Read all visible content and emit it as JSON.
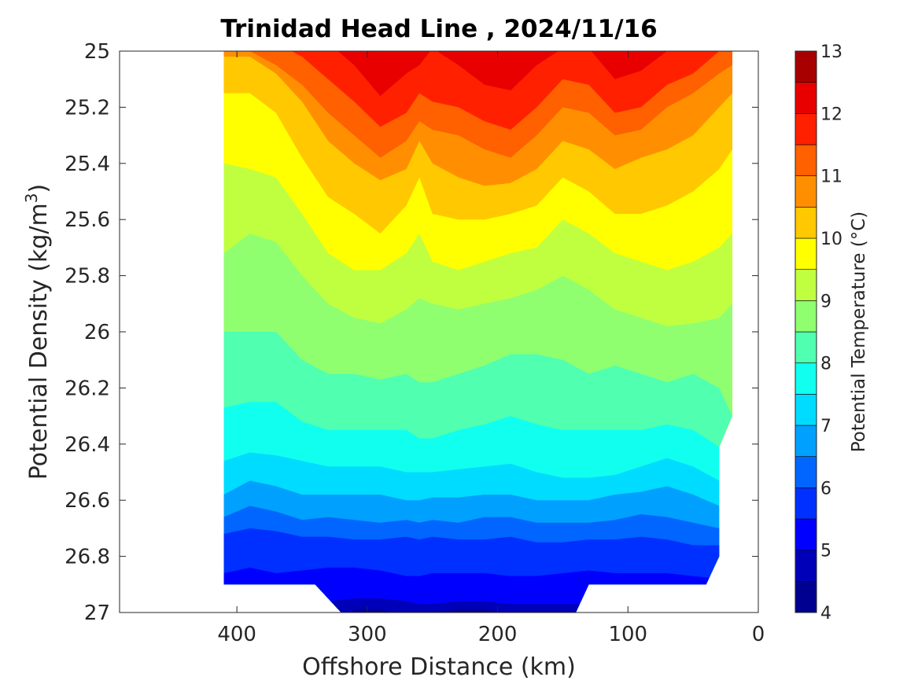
{
  "chart_data": {
    "type": "heatmap",
    "subtype": "filled-contour",
    "title": "Trinidad Head Line , 2024/11/16",
    "xlabel": "Offshore Distance (km)",
    "ylabel_main": "Potential Density (kg/m",
    "ylabel_sup": "3",
    "ylabel_close": ")",
    "colorbar_label": "Potential Temperature (°C)",
    "x_axis_reversed": true,
    "xlim": [
      0,
      490
    ],
    "ylim": [
      25,
      27
    ],
    "y_axis_inverted": true,
    "x_ticks": [
      400,
      300,
      200,
      100,
      0
    ],
    "x_tick_labels": [
      "400",
      "300",
      "200",
      "100",
      "0"
    ],
    "y_ticks": [
      25,
      25.2,
      25.4,
      25.6,
      25.8,
      26,
      26.2,
      26.4,
      26.6,
      26.8,
      27
    ],
    "y_tick_labels": [
      "25",
      "25.2",
      "25.4",
      "25.6",
      "25.8",
      "26",
      "26.2",
      "26.4",
      "26.6",
      "26.8",
      "27"
    ],
    "colorbar_ticks": [
      13,
      12,
      11,
      10,
      9,
      8,
      7,
      6,
      5,
      4
    ],
    "colorbar_tick_labels": [
      "13",
      "12",
      "11",
      "10",
      "9",
      "8",
      "7",
      "6",
      "5",
      "4"
    ],
    "color_levels": [
      {
        "from": 4.0,
        "to": 4.5,
        "color": "#000090"
      },
      {
        "from": 4.5,
        "to": 5.0,
        "color": "#0000b8"
      },
      {
        "from": 5.0,
        "to": 5.5,
        "color": "#0000ff"
      },
      {
        "from": 5.5,
        "to": 6.0,
        "color": "#0030ff"
      },
      {
        "from": 6.0,
        "to": 6.5,
        "color": "#0066ff"
      },
      {
        "from": 6.5,
        "to": 7.0,
        "color": "#00a0ff"
      },
      {
        "from": 7.0,
        "to": 7.5,
        "color": "#00dcff"
      },
      {
        "from": 7.5,
        "to": 8.0,
        "color": "#10ffef"
      },
      {
        "from": 8.0,
        "to": 8.5,
        "color": "#50ffb0"
      },
      {
        "from": 8.5,
        "to": 9.0,
        "color": "#8fff70"
      },
      {
        "from": 9.0,
        "to": 9.5,
        "color": "#c0ff40"
      },
      {
        "from": 9.5,
        "to": 10.0,
        "color": "#ffff00"
      },
      {
        "from": 10.0,
        "to": 10.5,
        "color": "#ffc800"
      },
      {
        "from": 10.5,
        "to": 11.0,
        "color": "#ff8f00"
      },
      {
        "from": 11.0,
        "to": 11.5,
        "color": "#ff6000"
      },
      {
        "from": 11.5,
        "to": 12.0,
        "color": "#ff2000"
      },
      {
        "from": 12.0,
        "to": 12.5,
        "color": "#e80000"
      },
      {
        "from": 12.5,
        "to": 13.0,
        "color": "#a80000"
      }
    ],
    "data_extent": {
      "x_range_km": [
        20,
        410
      ],
      "bottom_density_by_distance": [
        {
          "x": 410,
          "sigma": 26.9
        },
        {
          "x": 340,
          "sigma": 26.9
        },
        {
          "x": 320,
          "sigma": 27.0
        },
        {
          "x": 140,
          "sigma": 27.0
        },
        {
          "x": 130,
          "sigma": 26.9
        },
        {
          "x": 40,
          "sigma": 26.9
        },
        {
          "x": 30,
          "sigma": 26.8
        },
        {
          "x": 30,
          "sigma": 26.41
        },
        {
          "x": 20,
          "sigma": 26.3
        },
        {
          "x": 20,
          "sigma": 25.0
        }
      ]
    },
    "isotherm_x": [
      410,
      390,
      370,
      350,
      330,
      310,
      290,
      270,
      260,
      250,
      230,
      210,
      190,
      170,
      150,
      130,
      110,
      90,
      70,
      50,
      30,
      20
    ],
    "isotherms": [
      {
        "level": 12.0,
        "sigma": [
          24.95,
          24.95,
          24.95,
          24.95,
          24.97,
          25.05,
          25.16,
          25.08,
          25.05,
          24.99,
          25.05,
          25.12,
          25.14,
          25.05,
          24.99,
          24.99,
          25.1,
          25.07,
          25.0,
          24.95,
          24.95,
          24.95
        ]
      },
      {
        "level": 11.5,
        "sigma": [
          24.95,
          24.95,
          24.97,
          25.02,
          25.1,
          25.18,
          25.27,
          25.22,
          25.15,
          25.18,
          25.2,
          25.25,
          25.28,
          25.2,
          25.1,
          25.12,
          25.22,
          25.2,
          25.12,
          25.08,
          25.0,
          24.98
        ]
      },
      {
        "level": 11.0,
        "sigma": [
          25.0,
          25.0,
          25.05,
          25.12,
          25.22,
          25.3,
          25.38,
          25.32,
          25.25,
          25.28,
          25.3,
          25.35,
          25.38,
          25.3,
          25.2,
          25.22,
          25.3,
          25.28,
          25.2,
          25.15,
          25.08,
          25.05
        ]
      },
      {
        "level": 10.5,
        "sigma": [
          25.02,
          25.02,
          25.08,
          25.18,
          25.32,
          25.4,
          25.46,
          25.42,
          25.32,
          25.4,
          25.45,
          25.48,
          25.47,
          25.42,
          25.32,
          25.35,
          25.42,
          25.38,
          25.35,
          25.3,
          25.2,
          25.15
        ]
      },
      {
        "level": 10.0,
        "sigma": [
          25.15,
          25.15,
          25.22,
          25.38,
          25.52,
          25.58,
          25.65,
          25.55,
          25.45,
          25.58,
          25.6,
          25.6,
          25.58,
          25.55,
          25.45,
          25.5,
          25.58,
          25.58,
          25.55,
          25.5,
          25.42,
          25.35
        ]
      },
      {
        "level": 9.5,
        "sigma": [
          25.4,
          25.42,
          25.45,
          25.58,
          25.72,
          25.78,
          25.78,
          25.72,
          25.65,
          25.75,
          25.78,
          25.75,
          25.72,
          25.7,
          25.6,
          25.65,
          25.72,
          25.75,
          25.78,
          25.75,
          25.7,
          25.65
        ]
      },
      {
        "level": 9.0,
        "sigma": [
          25.72,
          25.65,
          25.68,
          25.8,
          25.9,
          25.95,
          25.97,
          25.92,
          25.88,
          25.9,
          25.92,
          25.9,
          25.88,
          25.85,
          25.8,
          25.85,
          25.92,
          25.95,
          25.98,
          25.97,
          25.95,
          25.9
        ]
      },
      {
        "level": 8.5,
        "sigma": [
          26.0,
          26.0,
          26.0,
          26.1,
          26.15,
          26.15,
          26.17,
          26.15,
          26.18,
          26.18,
          26.15,
          26.12,
          26.08,
          26.08,
          26.1,
          26.15,
          26.12,
          26.15,
          26.18,
          26.15,
          26.2,
          26.3
        ]
      },
      {
        "level": 8.0,
        "sigma": [
          26.27,
          26.25,
          26.25,
          26.32,
          26.35,
          26.35,
          26.35,
          26.35,
          26.38,
          26.38,
          26.35,
          26.33,
          26.3,
          26.33,
          26.35,
          26.35,
          26.35,
          26.35,
          26.33,
          26.35,
          26.41,
          26.45
        ]
      },
      {
        "level": 7.5,
        "sigma": [
          26.46,
          26.43,
          26.44,
          26.46,
          26.48,
          26.48,
          26.48,
          26.5,
          26.5,
          26.5,
          26.49,
          26.48,
          26.47,
          26.5,
          26.52,
          26.52,
          26.51,
          26.48,
          26.45,
          26.48,
          26.53,
          26.6
        ]
      },
      {
        "level": 7.0,
        "sigma": [
          26.58,
          26.53,
          26.55,
          26.58,
          26.58,
          26.58,
          26.58,
          26.6,
          26.6,
          26.59,
          26.59,
          26.58,
          26.58,
          26.6,
          26.6,
          26.6,
          26.58,
          26.57,
          26.55,
          26.58,
          26.62,
          26.7
        ]
      },
      {
        "level": 6.5,
        "sigma": [
          26.66,
          26.62,
          26.64,
          26.67,
          26.66,
          26.67,
          26.68,
          26.67,
          26.68,
          26.67,
          26.68,
          26.66,
          26.66,
          26.68,
          26.68,
          26.68,
          26.67,
          26.65,
          26.66,
          26.68,
          26.7,
          26.78
        ]
      },
      {
        "level": 6.0,
        "sigma": [
          26.72,
          26.7,
          26.71,
          26.73,
          26.73,
          26.74,
          26.74,
          26.73,
          26.74,
          26.73,
          26.74,
          26.74,
          26.73,
          26.75,
          26.75,
          26.74,
          26.74,
          26.73,
          26.74,
          26.76,
          26.76,
          26.84
        ]
      },
      {
        "level": 5.5,
        "sigma": [
          26.86,
          26.84,
          26.86,
          26.85,
          26.84,
          26.84,
          26.85,
          26.87,
          26.87,
          26.86,
          26.86,
          26.86,
          26.87,
          26.87,
          26.86,
          26.85,
          26.86,
          26.86,
          26.86,
          26.87,
          26.88,
          26.95
        ]
      },
      {
        "level": 5.0,
        "sigma": [
          26.98,
          26.98,
          26.98,
          26.97,
          26.96,
          26.95,
          26.95,
          26.96,
          26.97,
          26.97,
          26.96,
          26.96,
          26.97,
          26.97,
          26.97,
          26.97,
          26.98,
          26.98,
          26.98,
          26.98,
          26.98,
          26.98
        ]
      },
      {
        "level": 4.5,
        "sigma": [
          27.05,
          27.05,
          27.05,
          27.05,
          27.05,
          26.99,
          26.99,
          27.01,
          27.02,
          27.0,
          26.99,
          26.99,
          27.0,
          27.02,
          27.05,
          27.05,
          27.05,
          27.05,
          27.05,
          27.05,
          27.05,
          27.05
        ]
      }
    ]
  }
}
